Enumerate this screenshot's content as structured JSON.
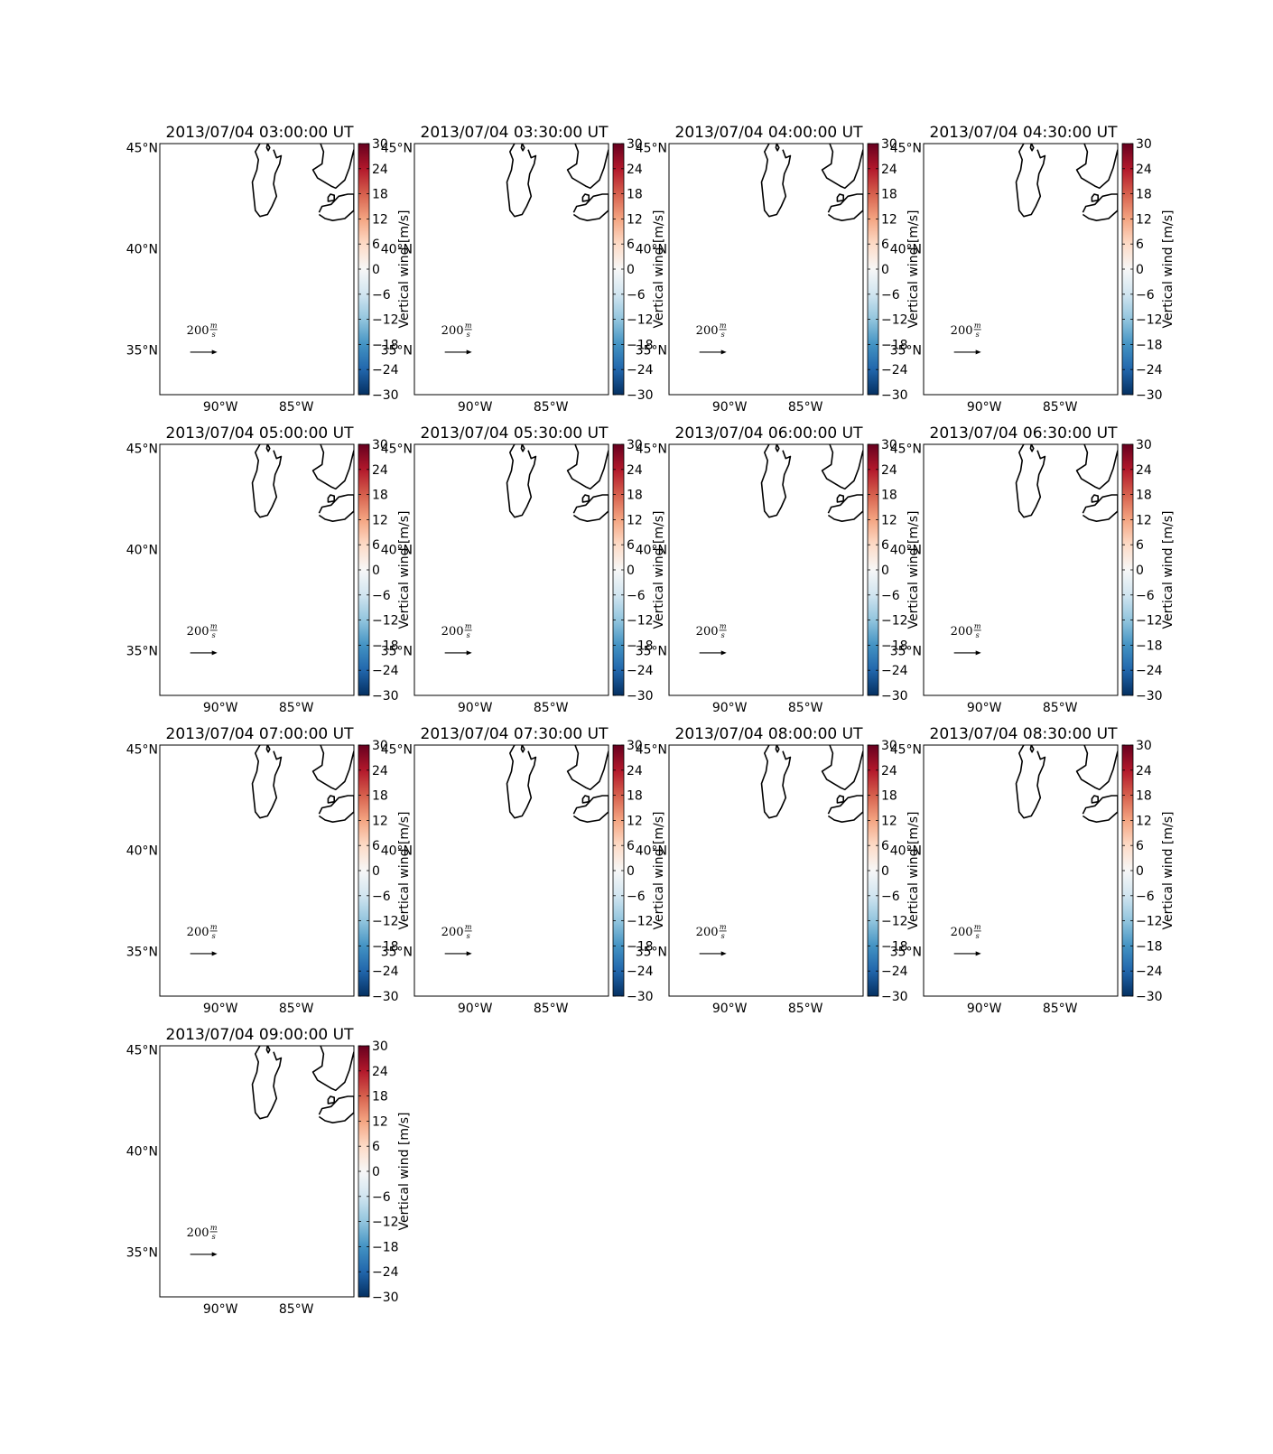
{
  "chart_data": {
    "type": "small-multiples-map",
    "layout": {
      "rows": 4,
      "cols": 4
    },
    "panels": [
      {
        "title": "2013/07/04 03:00:00 UT"
      },
      {
        "title": "2013/07/04 03:30:00 UT"
      },
      {
        "title": "2013/07/04 04:00:00 UT"
      },
      {
        "title": "2013/07/04 04:30:00 UT"
      },
      {
        "title": "2013/07/04 05:00:00 UT"
      },
      {
        "title": "2013/07/04 05:30:00 UT"
      },
      {
        "title": "2013/07/04 06:00:00 UT"
      },
      {
        "title": "2013/07/04 06:30:00 UT"
      },
      {
        "title": "2013/07/04 07:00:00 UT"
      },
      {
        "title": "2013/07/04 07:30:00 UT"
      },
      {
        "title": "2013/07/04 08:00:00 UT"
      },
      {
        "title": "2013/07/04 08:30:00 UT"
      },
      {
        "title": "2013/07/04 09:00:00 UT"
      }
    ],
    "map": {
      "lon_range": [
        -94,
        -81.2
      ],
      "lat_range": [
        32.8,
        45.2
      ],
      "lon_ticks": [
        -90,
        -85
      ],
      "lon_tick_labels": [
        "90°W",
        "85°W"
      ],
      "lat_ticks": [
        35,
        40,
        45
      ],
      "lat_tick_labels": [
        "35°N",
        "40°N",
        "45°N"
      ],
      "field": "empty"
    },
    "quiver_key": {
      "value": 200,
      "label": "200",
      "unit_num": "m",
      "unit_den": "s",
      "lon": -91.4,
      "lat": 34.9
    },
    "colorbar": {
      "label": "Vertical wind [m/s]",
      "range": [
        -30,
        30
      ],
      "ticks": [
        30,
        24,
        18,
        12,
        6,
        0,
        -6,
        -12,
        -18,
        -24,
        -30
      ],
      "tick_labels": [
        "30",
        "24",
        "18",
        "12",
        "6",
        "0",
        "−6",
        "−12",
        "−18",
        "−24",
        "−30"
      ],
      "colormap": "RdBu_r",
      "colors": [
        "#053061",
        "#2166ac",
        "#4393c3",
        "#92c5de",
        "#d1e5f0",
        "#f7f7f7",
        "#fddbc7",
        "#f4a582",
        "#d6604d",
        "#b2182b",
        "#67001f"
      ]
    }
  }
}
